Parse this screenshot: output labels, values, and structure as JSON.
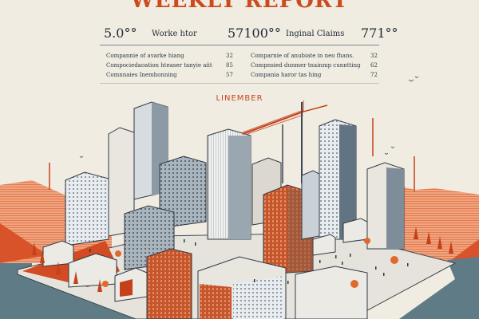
{
  "report": {
    "title": "WEEKLY REPORT",
    "section_label": "LINEMBER",
    "stats": [
      {
        "value": "5.0°°",
        "label": "Worke htor"
      },
      {
        "value": "57100°°",
        "label": "Inginal Claims"
      },
      {
        "value": "771°°",
        "label": ""
      }
    ],
    "left_list": [
      {
        "label": "Compannie of avarke hiang",
        "value": "32"
      },
      {
        "label": "Compociedaoation hteaser tanyie aiit",
        "value": "85"
      },
      {
        "label": "Comnnaies Inemhonning",
        "value": "57"
      }
    ],
    "right_list": [
      {
        "label": "Comparnie of anubiate in neo fhans.",
        "value": "32"
      },
      {
        "label": "Compnsied dunmer tnainmp cunntting",
        "value": "62"
      },
      {
        "label": "Compania haror tas hing",
        "value": "72"
      }
    ]
  },
  "colors": {
    "accent": "#cc4a1f",
    "ink": "#1e2a36",
    "background": "#f1ece1",
    "water": "#5f7b86",
    "hill": "#e37a4e",
    "crane": "#c4411a"
  }
}
